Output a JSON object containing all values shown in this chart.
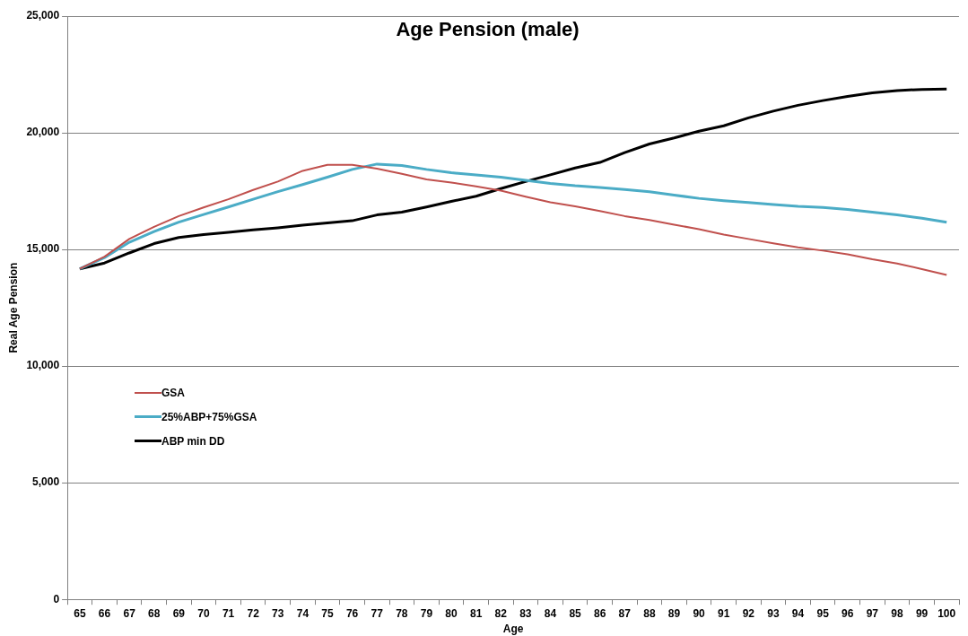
{
  "chart_data": {
    "type": "line",
    "title": "Age Pension (male)",
    "xlabel": "Age",
    "ylabel": "Real Age Pension",
    "categories": [
      "65",
      "66",
      "67",
      "68",
      "69",
      "70",
      "71",
      "72",
      "73",
      "74",
      "75",
      "76",
      "77",
      "78",
      "79",
      "80",
      "81",
      "82",
      "83",
      "84",
      "85",
      "86",
      "87",
      "88",
      "89",
      "90",
      "91",
      "92",
      "93",
      "94",
      "95",
      "96",
      "97",
      "98",
      "99",
      "100"
    ],
    "series": [
      {
        "name": "GSA",
        "color": "#c0504d",
        "values": [
          14170,
          14690,
          15450,
          15970,
          16430,
          16800,
          17150,
          17550,
          17910,
          18370,
          18630,
          18630,
          18460,
          18240,
          18000,
          17870,
          17700,
          17520,
          17260,
          17020,
          16850,
          16650,
          16430,
          16260,
          16060,
          15870,
          15640,
          15450,
          15260,
          15090,
          14950,
          14790,
          14580,
          14400,
          14160,
          13910
        ]
      },
      {
        "name": "25%ABP+75%GSA",
        "color": "#4bacc6",
        "values": [
          14170,
          14650,
          15310,
          15770,
          16170,
          16500,
          16820,
          17150,
          17480,
          17780,
          18100,
          18430,
          18660,
          18600,
          18430,
          18290,
          18190,
          18100,
          17960,
          17830,
          17730,
          17660,
          17570,
          17470,
          17330,
          17190,
          17090,
          17010,
          16930,
          16850,
          16800,
          16710,
          16600,
          16480,
          16340,
          16170
        ]
      },
      {
        "name": "ABP min DD",
        "color": "#000000",
        "values": [
          14170,
          14420,
          14850,
          15250,
          15510,
          15640,
          15730,
          15840,
          15930,
          16040,
          16140,
          16230,
          16480,
          16600,
          16820,
          17060,
          17280,
          17610,
          17910,
          18200,
          18490,
          18730,
          19150,
          19520,
          19780,
          20070,
          20300,
          20640,
          20930,
          21180,
          21380,
          21560,
          21710,
          21810,
          21860,
          21880
        ]
      }
    ],
    "ylim": [
      0,
      25000
    ],
    "yticks": [
      {
        "value": 0,
        "label": "0"
      },
      {
        "value": 5000,
        "label": "5,000"
      },
      {
        "value": 10000,
        "label": "10,000"
      },
      {
        "value": 15000,
        "label": "15,000"
      },
      {
        "value": 20000,
        "label": "20,000"
      },
      {
        "value": 25000,
        "label": "25,000"
      }
    ],
    "grid": "y",
    "legend": "left",
    "marker": "none",
    "line_style": "solid"
  }
}
